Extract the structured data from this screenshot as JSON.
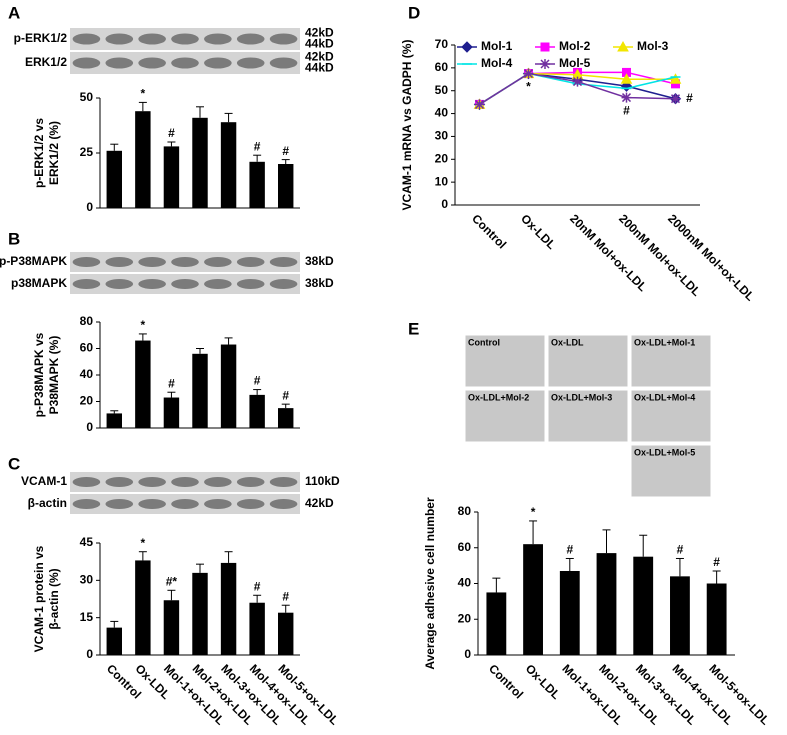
{
  "chart_data": [
    {
      "type": "bar",
      "panel": "A",
      "blots": [
        {
          "label": "p-ERK1/2",
          "sizes": [
            "42kD",
            "44kD"
          ]
        },
        {
          "label": "ERK1/2",
          "sizes": [
            "42kD",
            "44kD"
          ]
        }
      ],
      "y_label": [
        "p-ERK1/2 vs",
        "ERK1/2 (%)"
      ],
      "values": [
        26,
        44,
        28,
        41,
        39,
        21,
        20
      ],
      "errors": [
        3,
        4,
        2,
        5,
        4,
        3,
        2
      ],
      "markers": [
        null,
        "*",
        "#",
        null,
        null,
        "#",
        "#"
      ],
      "color": "#000000",
      "ylim": [
        0,
        50
      ],
      "yticks": [
        0,
        25,
        50
      ]
    },
    {
      "type": "bar",
      "panel": "B",
      "blots": [
        {
          "label": "p-P38MAPK",
          "sizes": [
            "38kD"
          ]
        },
        {
          "label": "p38MAPK",
          "sizes": [
            "38kD"
          ]
        }
      ],
      "y_label": [
        "p-P38MAPK vs",
        "P38MAPK (%)"
      ],
      "values": [
        11,
        66,
        23,
        56,
        63,
        25,
        15
      ],
      "errors": [
        2,
        5,
        4,
        4,
        5,
        4,
        3
      ],
      "markers": [
        null,
        "*",
        "#",
        null,
        null,
        "#",
        "#"
      ],
      "color": "#000000",
      "ylim": [
        0,
        80
      ],
      "yticks": [
        0,
        20,
        40,
        60,
        80
      ]
    },
    {
      "type": "bar",
      "panel": "C",
      "blots": [
        {
          "label": "VCAM-1",
          "sizes": [
            "110kD"
          ]
        },
        {
          "label": "β-actin",
          "sizes": [
            "42kD"
          ]
        }
      ],
      "y_label": [
        "VCAM-1 protein vs",
        "β-actin (%)"
      ],
      "categories": [
        "Control",
        "Ox-LDL",
        "Mol-1+ox-LDL",
        "Mol-2+ox-LDL",
        "Mol-3+ox-LDL",
        "Mol-4+ox-LDL",
        "Mol-5+ox-LDL"
      ],
      "values": [
        11,
        38,
        22,
        33,
        37,
        21,
        17
      ],
      "errors": [
        2.5,
        3.5,
        4,
        3.5,
        4.5,
        3,
        3
      ],
      "markers": [
        null,
        "*",
        "#*",
        null,
        null,
        "#",
        "#"
      ],
      "color": "#000000",
      "ylim": [
        0,
        45
      ],
      "yticks": [
        0,
        15,
        30,
        45
      ]
    },
    {
      "type": "line",
      "panel": "D",
      "y_label": [
        "VCAM-1 mRNA vs GADPH (%)"
      ],
      "categories": [
        "Control",
        "Ox-LDL",
        "20nM Mol+ox-LDL",
        "200nM Mol+ox-LDL",
        "2000nM Mol+ox-LDL"
      ],
      "series": [
        {
          "name": "Mol-1",
          "color": "#1f1f8f",
          "marker": "diamond",
          "values": [
            44,
            57.5,
            55,
            52,
            46.5
          ]
        },
        {
          "name": "Mol-2",
          "color": "#ff00ff",
          "marker": "square",
          "values": [
            44,
            57.5,
            58,
            58,
            53
          ]
        },
        {
          "name": "Mol-3",
          "color": "#f2e600",
          "marker": "triangle",
          "values": [
            44,
            57.5,
            57,
            55,
            55
          ]
        },
        {
          "name": "Mol-4",
          "color": "#00e5e5",
          "marker": "none",
          "values": [
            44,
            57.5,
            53,
            51,
            56
          ]
        },
        {
          "name": "Mol-5",
          "color": "#7030a0",
          "marker": "star",
          "values": [
            44,
            57.5,
            54,
            47,
            46.5
          ]
        }
      ],
      "annotations": [
        {
          "text": "*",
          "category": "Ox-LDL"
        },
        {
          "text": "#",
          "category": "200nM Mol+ox-LDL"
        },
        {
          "text": "#",
          "category": "2000nM Mol+ox-LDL"
        }
      ],
      "ylim": [
        0,
        70
      ],
      "yticks": [
        0,
        10,
        20,
        30,
        40,
        50,
        60,
        70
      ]
    },
    {
      "type": "bar",
      "panel": "E",
      "images": [
        "Control",
        "Ox-LDL",
        "Ox-LDL+Mol-1",
        "Ox-LDL+Mol-2",
        "Ox-LDL+Mol-3",
        "Ox-LDL+Mol-4",
        "Ox-LDL+Mol-5"
      ],
      "y_label": [
        "Average adhesive cell number"
      ],
      "categories": [
        "Control",
        "Ox-LDL",
        "Mol-1+ox-LDL",
        "Mol-2+ox-LDL",
        "Mol-3+ox-LDL",
        "Mol-4+ox-LDL",
        "Mol-5+ox-LDL"
      ],
      "values": [
        35,
        62,
        47,
        57,
        55,
        44,
        40
      ],
      "errors": [
        8,
        13,
        7,
        13,
        12,
        10,
        7
      ],
      "markers": [
        null,
        "*",
        "#",
        null,
        null,
        "#",
        "#"
      ],
      "color": "#000000",
      "ylim": [
        0,
        80
      ],
      "yticks": [
        0,
        20,
        40,
        60,
        80
      ]
    }
  ]
}
